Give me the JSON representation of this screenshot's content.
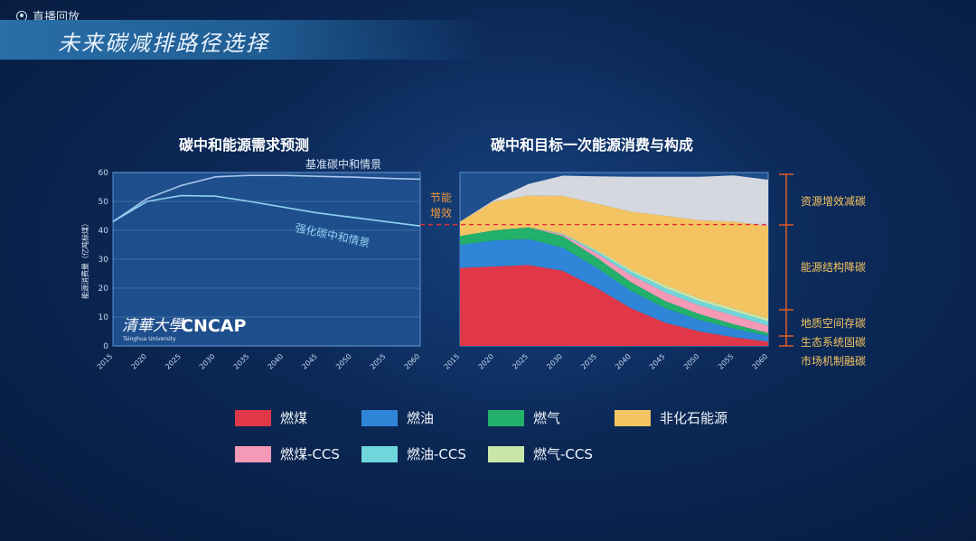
{
  "header": {
    "replay_label": "直播回放",
    "title": "未来碳减排路径选择"
  },
  "logo": {
    "cn": "清華大學",
    "en": "Tsinghua University",
    "org": "CNCAP"
  },
  "chart_data": [
    {
      "type": "line",
      "title": "碳中和能源需求预测",
      "ylabel": "能源消费量（亿吨标煤）",
      "x": [
        2015,
        2020,
        2025,
        2030,
        2035,
        2040,
        2045,
        2050,
        2055,
        2060
      ],
      "ylim": [
        0,
        60
      ],
      "yticks": [
        0,
        10,
        20,
        30,
        40,
        50,
        60
      ],
      "grid": true,
      "series": [
        {
          "name": "基准碳中和情景",
          "values": [
            43,
            51,
            55.5,
            58.5,
            59,
            59,
            58.7,
            58.4,
            58,
            57.7
          ]
        },
        {
          "name": "强化碳中和情景",
          "values": [
            43,
            50,
            52,
            51.8,
            50,
            48,
            46,
            44.5,
            43,
            41.5
          ]
        }
      ]
    },
    {
      "type": "area",
      "title": "碳中和目标一次能源消费与构成",
      "x": [
        2015,
        2020,
        2025,
        2030,
        2035,
        2040,
        2045,
        2050,
        2055,
        2060
      ],
      "ylim": [
        0,
        60
      ],
      "stacked": true,
      "series": [
        {
          "name": "燃煤",
          "color": "#e03848",
          "values": [
            27,
            27.5,
            28,
            26,
            20,
            13,
            8,
            5,
            3,
            1.5
          ]
        },
        {
          "name": "燃油",
          "color": "#2f86d9",
          "values": [
            8,
            9,
            9,
            8,
            7,
            6,
            5,
            4,
            3,
            2
          ]
        },
        {
          "name": "燃气",
          "color": "#22b06a",
          "values": [
            3,
            3.5,
            4,
            4,
            3.5,
            3,
            2.5,
            2,
            1.5,
            1
          ]
        },
        {
          "name": "燃煤-CCS",
          "color": "#f59ab6",
          "values": [
            0,
            0,
            0,
            0.5,
            1.5,
            2.5,
            3,
            3,
            3,
            2.5
          ]
        },
        {
          "name": "燃油-CCS",
          "color": "#6fd6dc",
          "values": [
            0,
            0,
            0,
            0.2,
            0.7,
            1.2,
            1.5,
            1.5,
            1.5,
            1.5
          ]
        },
        {
          "name": "燃气-CCS",
          "color": "#c8e6a8",
          "values": [
            0,
            0,
            0,
            0.2,
            0.5,
            0.8,
            1,
            1,
            1,
            1
          ]
        },
        {
          "name": "非化石能源",
          "color": "#f5c462",
          "values": [
            5,
            10,
            11,
            13,
            16,
            20,
            24,
            27,
            30,
            32
          ]
        },
        {
          "name": "节能增效",
          "color": "#d6d8e0",
          "values": [
            0,
            0.5,
            4,
            7,
            9.5,
            12,
            13.5,
            15,
            16,
            16
          ]
        }
      ],
      "total_line": 42,
      "annotations": [
        "节能增效",
        "资源增效减碳",
        "能源结构降碳",
        "地质空间存碳",
        "生态系统固碳",
        "市场机制融碳"
      ]
    }
  ],
  "legend": [
    "燃煤",
    "燃油",
    "燃气",
    "非化石能源",
    "燃煤-CCS",
    "燃油-CCS",
    "燃气-CCS"
  ],
  "legend_colors": [
    "#e03848",
    "#2f86d9",
    "#22b06a",
    "#f5c462",
    "#f59ab6",
    "#6fd6dc",
    "#c8e6a8"
  ]
}
